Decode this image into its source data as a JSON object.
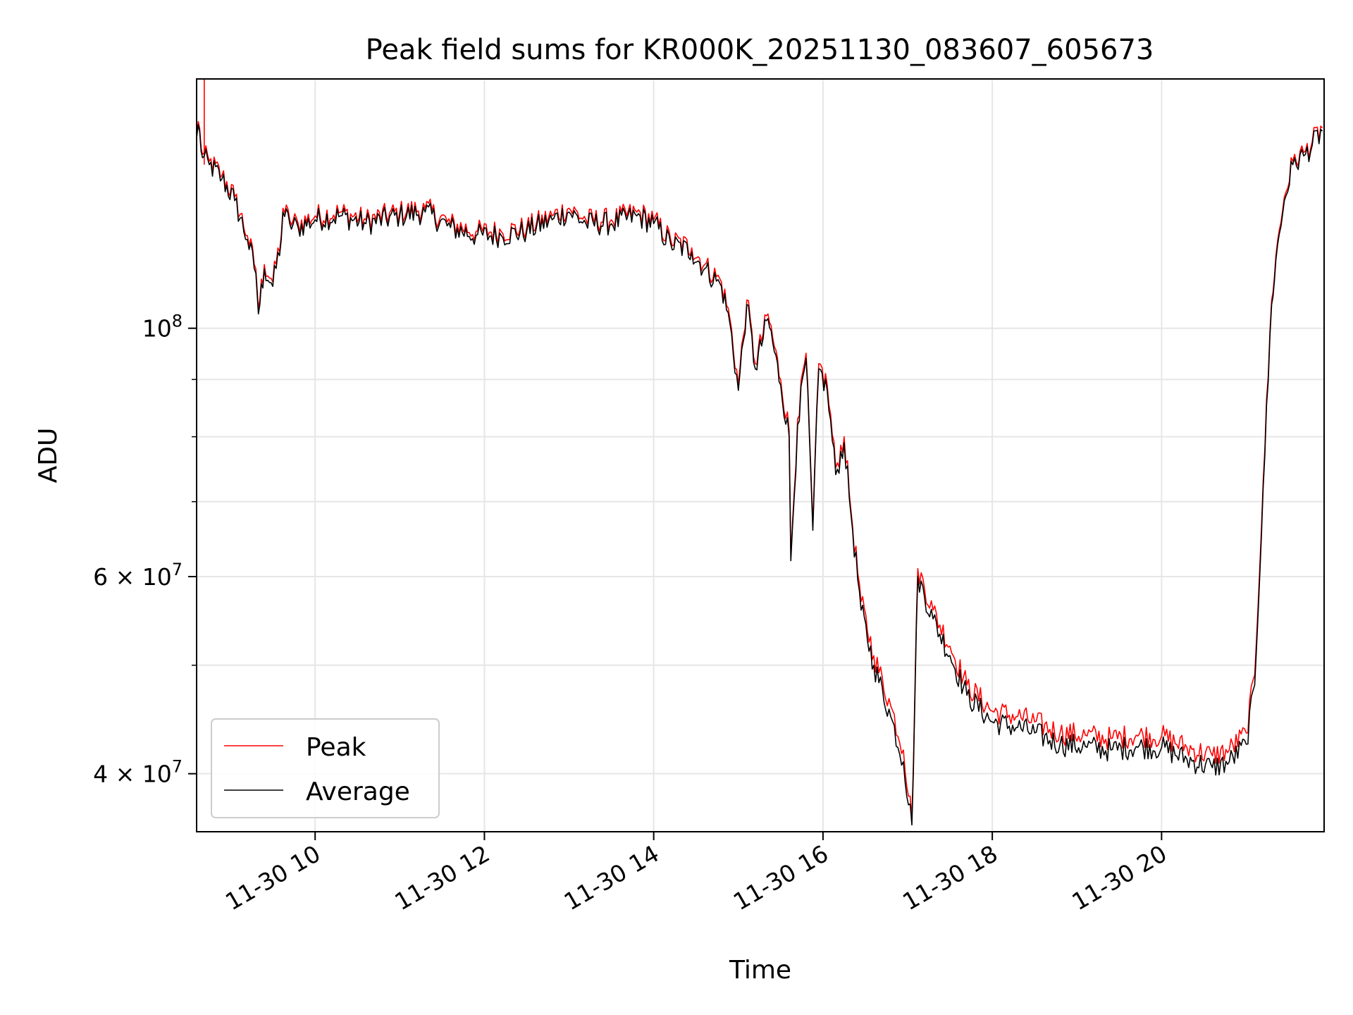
{
  "chart_data": {
    "type": "line",
    "title": "Peak field sums for KR000K_20251130_083607_605673",
    "xlabel": "Time",
    "ylabel": "ADU",
    "xscale": "time",
    "yscale": "log",
    "xlim": [
      8.6,
      21.92
    ],
    "ylim": [
      35500000,
      167000000
    ],
    "grid": true,
    "x_ticks": [
      {
        "value": 10,
        "label": "11-30 10"
      },
      {
        "value": 12,
        "label": "11-30 12"
      },
      {
        "value": 14,
        "label": "11-30 14"
      },
      {
        "value": 16,
        "label": "11-30 16"
      },
      {
        "value": 18,
        "label": "11-30 18"
      },
      {
        "value": 20,
        "label": "11-30 20"
      }
    ],
    "y_major_ticks": [
      {
        "value": 100000000,
        "base": "10",
        "exp": "8",
        "coef": ""
      },
      {
        "value": 60000000,
        "base": "10",
        "exp": "7",
        "coef": "6 × "
      },
      {
        "value": 40000000,
        "base": "10",
        "exp": "7",
        "coef": "4 × "
      }
    ],
    "y_minor_grid": [
      50000000,
      70000000,
      80000000,
      90000000
    ],
    "legend": {
      "position": "lower-left",
      "entries": [
        {
          "label": "Peak",
          "color": "#ff0000"
        },
        {
          "label": "Average",
          "color": "#000000"
        }
      ]
    },
    "series": [
      {
        "name": "Average",
        "color": "#000000",
        "x": [
          8.6,
          8.62,
          8.67,
          8.75,
          8.9,
          9.05,
          9.2,
          9.3,
          9.33,
          9.4,
          9.5,
          9.6,
          9.62,
          9.7,
          9.8,
          10.0,
          10.3,
          10.6,
          11.0,
          11.3,
          11.6,
          11.9,
          12.2,
          12.5,
          12.8,
          13.0,
          13.2,
          13.5,
          13.8,
          14.0,
          14.2,
          14.45,
          14.6,
          14.8,
          14.9,
          15.0,
          15.1,
          15.2,
          15.35,
          15.5,
          15.6,
          15.62,
          15.7,
          15.8,
          15.88,
          15.95,
          16.05,
          16.15,
          16.25,
          16.35,
          16.45,
          16.6,
          16.8,
          16.95,
          17.05,
          17.12,
          17.3,
          17.5,
          17.7,
          18.0,
          18.3,
          18.5,
          18.8,
          19.1,
          19.4,
          19.7,
          20.0,
          20.3,
          20.6,
          20.8,
          21.0,
          21.1,
          21.2,
          21.3,
          21.35,
          21.45,
          21.55,
          21.7,
          21.9
        ],
        "y": [
          148000000,
          152000000,
          142000000,
          140000000,
          136000000,
          130000000,
          120000000,
          112000000,
          103000000,
          113000000,
          109000000,
          120000000,
          127000000,
          124000000,
          123000000,
          125000000,
          126000000,
          124000000,
          126000000,
          127000000,
          123000000,
          121000000,
          121000000,
          122000000,
          125000000,
          127000000,
          124000000,
          124000000,
          126000000,
          124000000,
          119000000,
          117000000,
          113000000,
          109000000,
          101000000,
          88000000,
          105000000,
          92000000,
          102000000,
          89000000,
          80000000,
          62000000,
          82000000,
          94000000,
          66000000,
          92000000,
          88000000,
          74000000,
          79000000,
          66000000,
          56000000,
          50000000,
          45000000,
          41000000,
          36000000,
          60000000,
          55000000,
          51000000,
          47000000,
          44500000,
          44000000,
          43500000,
          42500000,
          42300000,
          42000000,
          42300000,
          42200000,
          41200000,
          40500000,
          41000000,
          42500000,
          48000000,
          72000000,
          105000000,
          115000000,
          130000000,
          140000000,
          143000000,
          150000000
        ]
      },
      {
        "name": "Peak",
        "color": "#ff0000",
        "x": [
          8.6,
          8.62,
          8.67,
          8.75,
          8.9,
          9.05,
          9.2,
          9.3,
          9.33,
          9.4,
          9.5,
          9.6,
          9.62,
          9.7,
          9.8,
          10.0,
          10.3,
          10.6,
          11.0,
          11.3,
          11.6,
          11.9,
          12.2,
          12.5,
          12.8,
          13.0,
          13.2,
          13.5,
          13.8,
          14.0,
          14.2,
          14.45,
          14.6,
          14.8,
          14.9,
          15.0,
          15.1,
          15.2,
          15.35,
          15.5,
          15.6,
          15.62,
          15.7,
          15.8,
          15.88,
          15.95,
          16.05,
          16.15,
          16.25,
          16.35,
          16.45,
          16.6,
          16.8,
          16.95,
          17.05,
          17.12,
          17.3,
          17.5,
          17.7,
          18.0,
          18.3,
          18.5,
          18.8,
          19.1,
          19.4,
          19.7,
          20.0,
          20.3,
          20.6,
          20.8,
          21.0,
          21.1,
          21.2,
          21.3,
          21.35,
          21.45,
          21.55,
          21.7,
          21.9
        ],
        "y": [
          149000000,
          153000000,
          143000000,
          141000000,
          137000000,
          131000000,
          121000000,
          113000000,
          104000000,
          114000000,
          110000000,
          121000000,
          128000000,
          125000000,
          124000000,
          126000000,
          127000000,
          125000000,
          127000000,
          128000000,
          124000000,
          122000000,
          122000000,
          123000000,
          126000000,
          128000000,
          125000000,
          125000000,
          127000000,
          125000000,
          120000000,
          118000000,
          114000000,
          110000000,
          102000000,
          89000000,
          106000000,
          93000000,
          103000000,
          90000000,
          81000000,
          62500000,
          83000000,
          95000000,
          66500000,
          93000000,
          89000000,
          75000000,
          80000000,
          66500000,
          57000000,
          51000000,
          46000000,
          42000000,
          36500000,
          61000000,
          56000000,
          52000000,
          48000000,
          45500000,
          45000000,
          44500000,
          43500000,
          43300000,
          43000000,
          43300000,
          43200000,
          42200000,
          41500000,
          42000000,
          43500000,
          49000000,
          73000000,
          106000000,
          116000000,
          131000000,
          141000000,
          144000000,
          151000000
        ],
        "spike": {
          "x": [
            8.69,
            8.69
          ],
          "y": [
            167000000,
            140000000
          ]
        }
      }
    ]
  }
}
